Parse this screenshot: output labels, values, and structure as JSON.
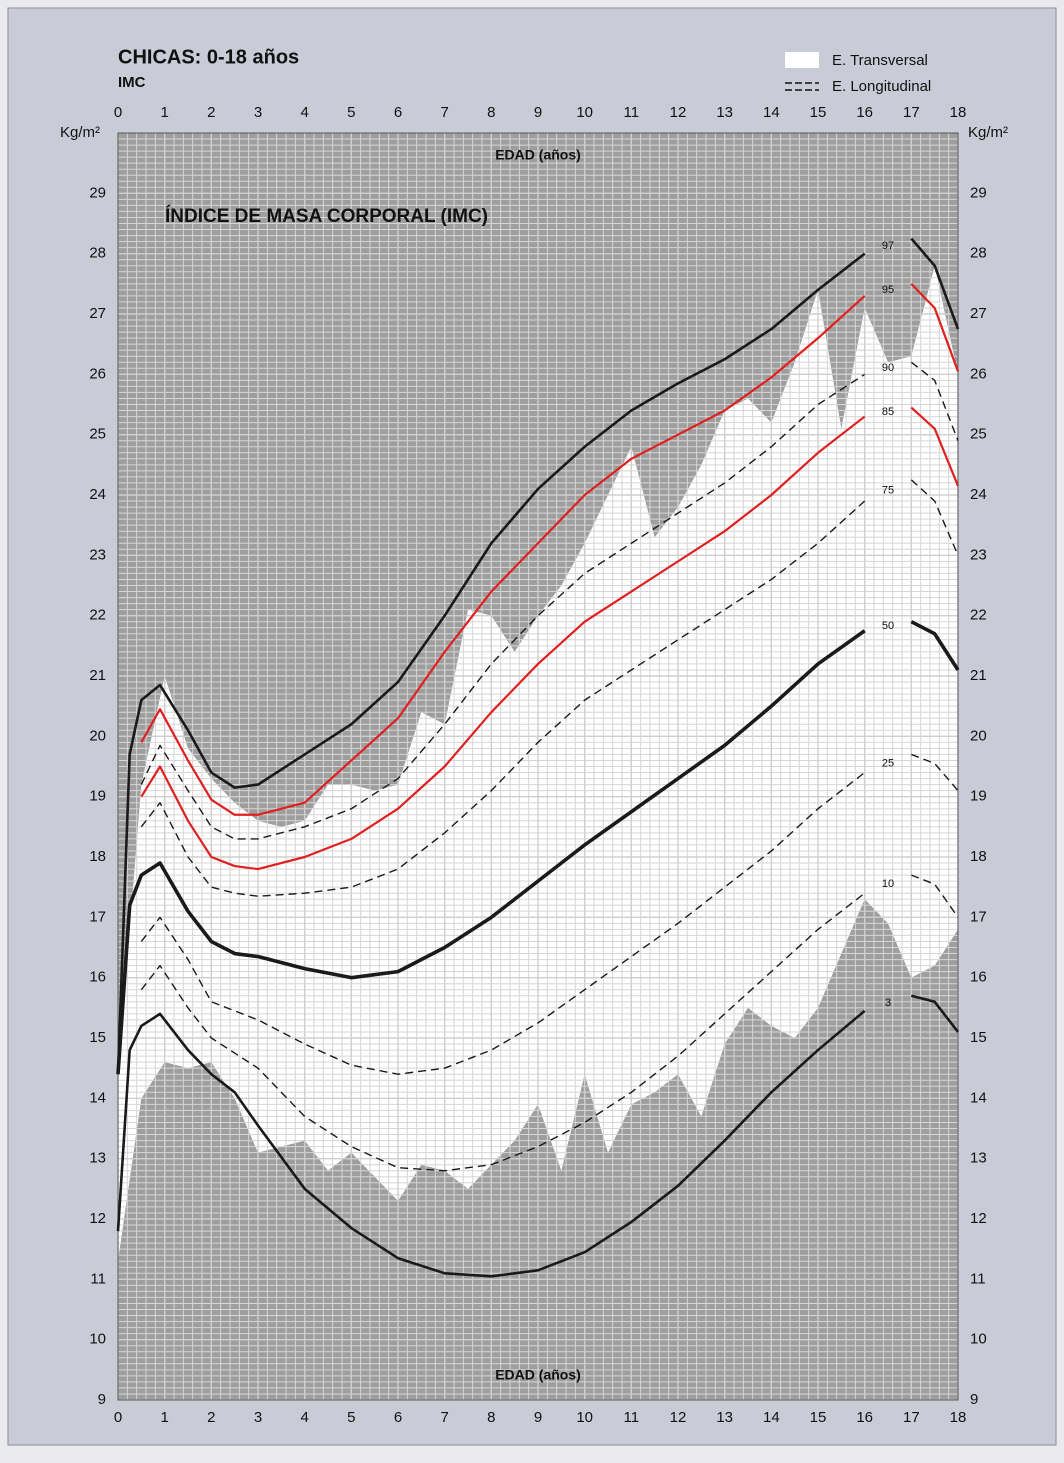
{
  "chart_data": {
    "type": "line",
    "title": "CHICAS: 0-18 años",
    "subtitle": "IMC",
    "inner_title": "ÍNDICE DE MASA CORPORAL (IMC)",
    "x_label": "EDAD (años)",
    "y_label": "Kg/m²",
    "legend": [
      "E. Transversal",
      "E. Longitudinal"
    ],
    "xlim": [
      0,
      18
    ],
    "xticks": [
      0,
      1,
      2,
      3,
      4,
      5,
      6,
      7,
      8,
      9,
      10,
      11,
      12,
      13,
      14,
      15,
      16,
      17,
      18
    ],
    "ylim": [
      9,
      30
    ],
    "yticks": [
      9,
      10,
      11,
      12,
      13,
      14,
      15,
      16,
      17,
      18,
      19,
      20,
      21,
      22,
      23,
      24,
      25,
      26,
      27,
      28,
      29
    ],
    "grid": true,
    "x": [
      0,
      0.25,
      0.5,
      0.9,
      1.5,
      2,
      2.5,
      3,
      4,
      5,
      6,
      7,
      8,
      9,
      10,
      11,
      12,
      13,
      14,
      15,
      16,
      16.5,
      17,
      17.5,
      18
    ],
    "series": [
      {
        "name": "97",
        "color": "#1a1a1a",
        "dashed": false,
        "values": [
          14.4,
          19.7,
          20.6,
          20.85,
          20.1,
          19.4,
          19.15,
          19.2,
          19.7,
          20.2,
          20.9,
          22.0,
          23.2,
          24.1,
          24.8,
          25.4,
          25.85,
          26.25,
          26.75,
          27.4,
          28.0,
          null,
          28.25,
          27.8,
          26.75
        ]
      },
      {
        "name": "95",
        "color": "#e02020",
        "dashed": false,
        "values": [
          null,
          null,
          19.9,
          20.45,
          19.6,
          18.95,
          18.7,
          18.7,
          18.9,
          19.6,
          20.3,
          21.4,
          22.4,
          23.2,
          24.0,
          24.6,
          25.0,
          25.4,
          25.95,
          26.6,
          27.3,
          null,
          27.5,
          27.1,
          26.05
        ]
      },
      {
        "name": "90",
        "color": "#1a1a1a",
        "dashed": true,
        "values": [
          null,
          null,
          19.2,
          19.85,
          19.1,
          18.5,
          18.3,
          18.3,
          18.5,
          18.8,
          19.3,
          20.2,
          21.2,
          22.0,
          22.7,
          23.2,
          23.7,
          24.2,
          24.8,
          25.5,
          26.0,
          null,
          26.2,
          25.9,
          24.9
        ]
      },
      {
        "name": "85",
        "color": "#e02020",
        "dashed": false,
        "values": [
          null,
          null,
          19.0,
          19.5,
          18.6,
          18.0,
          17.85,
          17.8,
          18.0,
          18.3,
          18.8,
          19.5,
          20.4,
          21.2,
          21.9,
          22.4,
          22.9,
          23.4,
          24.0,
          24.7,
          25.3,
          null,
          25.45,
          25.1,
          24.15
        ]
      },
      {
        "name": "75",
        "color": "#1a1a1a",
        "dashed": true,
        "values": [
          null,
          null,
          18.5,
          18.9,
          18.0,
          17.5,
          17.4,
          17.35,
          17.4,
          17.5,
          17.8,
          18.4,
          19.1,
          19.9,
          20.6,
          21.1,
          21.6,
          22.1,
          22.6,
          23.2,
          23.9,
          null,
          24.25,
          23.9,
          23.0
        ]
      },
      {
        "name": "50",
        "color": "#1a1a1a",
        "dashed": false,
        "values": [
          14.4,
          17.2,
          17.7,
          17.9,
          17.1,
          16.6,
          16.4,
          16.35,
          16.15,
          16.0,
          16.1,
          16.5,
          17.0,
          17.6,
          18.2,
          18.75,
          19.3,
          19.85,
          20.5,
          21.2,
          21.75,
          null,
          21.9,
          21.7,
          21.1
        ]
      },
      {
        "name": "25",
        "color": "#1a1a1a",
        "dashed": true,
        "values": [
          null,
          null,
          16.6,
          17.0,
          16.3,
          15.6,
          15.45,
          15.3,
          14.9,
          14.55,
          14.4,
          14.5,
          14.8,
          15.25,
          15.8,
          16.35,
          16.9,
          17.5,
          18.1,
          18.8,
          19.4,
          null,
          19.7,
          19.55,
          19.1
        ]
      },
      {
        "name": "10",
        "color": "#1a1a1a",
        "dashed": true,
        "values": [
          null,
          null,
          15.8,
          16.2,
          15.5,
          15.0,
          14.75,
          14.5,
          13.7,
          13.2,
          12.85,
          12.8,
          12.9,
          13.2,
          13.6,
          14.1,
          14.7,
          15.4,
          16.1,
          16.8,
          17.4,
          null,
          17.7,
          17.55,
          17.0
        ]
      },
      {
        "name": "3",
        "color": "#1a1a1a",
        "dashed": false,
        "values": [
          11.8,
          14.8,
          15.2,
          15.4,
          14.8,
          14.4,
          14.1,
          13.55,
          12.5,
          11.85,
          11.35,
          11.1,
          11.05,
          11.15,
          11.45,
          11.95,
          12.55,
          13.3,
          14.1,
          14.8,
          15.45,
          null,
          15.7,
          15.6,
          15.1
        ]
      }
    ],
    "transversal": {
      "x": [
        0,
        0.5,
        1,
        1.5,
        2,
        2.5,
        3,
        3.5,
        4,
        4.5,
        5,
        5.5,
        6,
        6.5,
        7,
        7.5,
        8,
        8.5,
        9,
        9.5,
        10,
        10.5,
        11,
        11.5,
        12,
        12.5,
        13,
        13.5,
        14,
        14.5,
        15,
        15.5,
        16,
        16.5,
        17,
        17.5,
        18
      ],
      "upper": [
        14.4,
        19.2,
        21.0,
        19.8,
        19.3,
        18.9,
        18.6,
        18.5,
        18.6,
        19.2,
        19.2,
        19.1,
        19.2,
        20.4,
        20.2,
        22.1,
        22.0,
        21.4,
        22.0,
        22.5,
        23.2,
        24.0,
        24.8,
        23.3,
        23.8,
        24.5,
        25.4,
        25.6,
        25.2,
        26.2,
        27.4,
        25.1,
        27.1,
        26.2,
        26.3,
        27.8,
        26.0
      ],
      "lower": [
        11.3,
        14.0,
        14.6,
        14.5,
        14.6,
        14.0,
        13.1,
        13.2,
        13.3,
        12.8,
        13.1,
        12.7,
        12.3,
        12.9,
        12.8,
        12.5,
        12.9,
        13.3,
        13.9,
        12.8,
        14.4,
        13.1,
        13.9,
        14.1,
        14.4,
        13.7,
        14.9,
        15.5,
        15.2,
        15.0,
        15.5,
        16.4,
        17.3,
        16.9,
        16.0,
        16.2,
        16.8
      ]
    }
  }
}
